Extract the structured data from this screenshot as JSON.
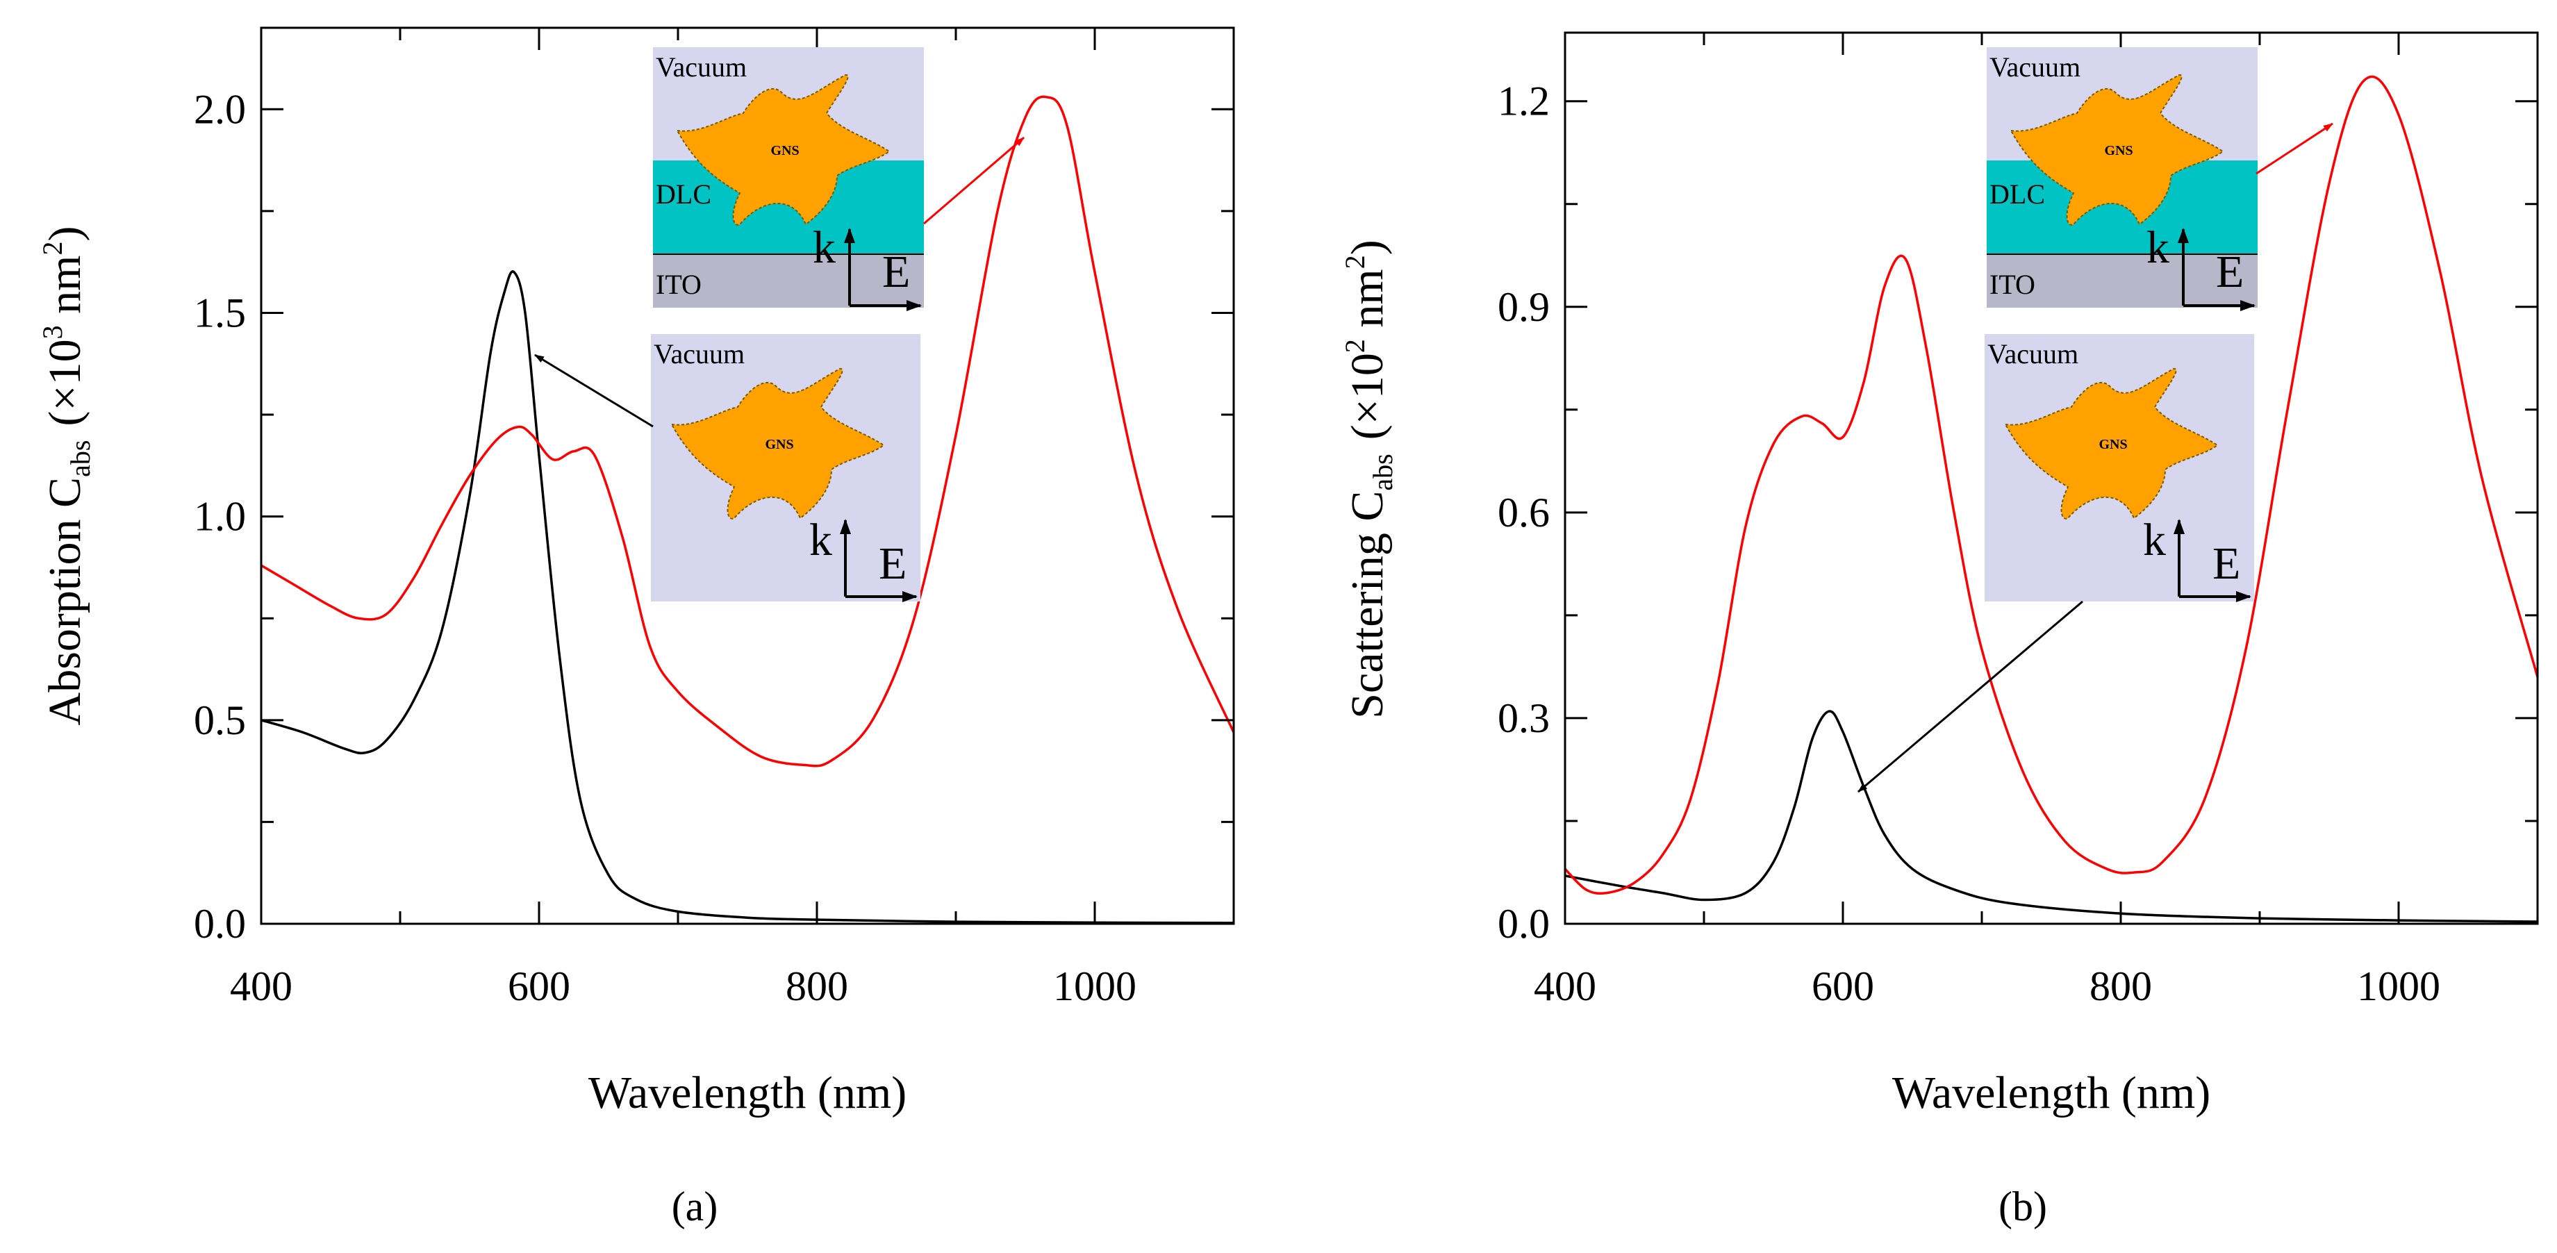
{
  "colors": {
    "black_series": "#000000",
    "red_series": "#ff0000",
    "inset_vacuum": "#d6d6ee",
    "inset_dlc": "#00c4c4",
    "inset_ito": "#b7b7c9",
    "nanostar": "#ffa200"
  },
  "chart_data": [
    {
      "type": "line",
      "panel_label": "(a)",
      "xlabel": "Wavelength (nm)",
      "ylabel_main": "Absorption C",
      "ylabel_sub": "abs",
      "ylabel_unit_pre": "(×10",
      "ylabel_unit_exp": "3",
      "ylabel_unit_mid": " nm",
      "ylabel_unit_exp2": "2",
      "ylabel_unit_post": ")",
      "xlim": [
        400,
        1100
      ],
      "ylim": [
        0,
        2.2
      ],
      "xticks": [
        400,
        600,
        800,
        1000
      ],
      "xtick_labels": [
        "400",
        "600",
        "800",
        "1000"
      ],
      "yticks": [
        0,
        0.5,
        1.0,
        1.5,
        2.0
      ],
      "ytick_labels": [
        "0.0",
        "0.5",
        "1.0",
        "1.5",
        "2.0"
      ],
      "series": [
        {
          "color": "#000000",
          "x": [
            400,
            430,
            460,
            475,
            490,
            510,
            530,
            550,
            565,
            575,
            582,
            590,
            600,
            615,
            630,
            650,
            670,
            700,
            750,
            800,
            900,
            1000,
            1100
          ],
          "y": [
            0.5,
            0.47,
            0.43,
            0.42,
            0.45,
            0.55,
            0.72,
            1.05,
            1.4,
            1.55,
            1.6,
            1.5,
            1.15,
            0.65,
            0.3,
            0.12,
            0.06,
            0.03,
            0.015,
            0.01,
            0.005,
            0.003,
            0.002
          ]
        },
        {
          "color": "#ff0000",
          "x": [
            400,
            420,
            450,
            470,
            490,
            510,
            530,
            550,
            570,
            585,
            595,
            610,
            625,
            640,
            660,
            680,
            700,
            730,
            760,
            790,
            810,
            840,
            870,
            900,
            930,
            950,
            965,
            980,
            1000,
            1030,
            1060,
            1100
          ],
          "y": [
            0.88,
            0.84,
            0.78,
            0.75,
            0.76,
            0.85,
            0.98,
            1.1,
            1.19,
            1.22,
            1.2,
            1.14,
            1.16,
            1.15,
            0.95,
            0.68,
            0.57,
            0.48,
            0.41,
            0.39,
            0.4,
            0.5,
            0.75,
            1.2,
            1.75,
            1.98,
            2.03,
            1.96,
            1.6,
            1.1,
            0.77,
            0.47
          ]
        }
      ],
      "insets": [
        {
          "layers": [
            "Vacuum",
            "DLC",
            "ITO"
          ],
          "particle_label": "GNS",
          "k_label": "k",
          "e_label": "E"
        },
        {
          "layers": [
            "Vacuum"
          ],
          "particle_label": "GNS",
          "k_label": "k",
          "e_label": "E"
        }
      ]
    },
    {
      "type": "line",
      "panel_label": "(b)",
      "xlabel": "Wavelength (nm)",
      "ylabel_main": "Scattering C",
      "ylabel_sub": "abs",
      "ylabel_unit_pre": "(×10",
      "ylabel_unit_exp": "2",
      "ylabel_unit_mid": " nm",
      "ylabel_unit_exp2": "2",
      "ylabel_unit_post": ")",
      "xlim": [
        400,
        1100
      ],
      "ylim": [
        0,
        1.3
      ],
      "xticks": [
        400,
        600,
        800,
        1000
      ],
      "xtick_labels": [
        "400",
        "600",
        "800",
        "1000"
      ],
      "yticks": [
        0,
        0.3,
        0.6,
        0.9,
        1.2
      ],
      "ytick_labels": [
        "0.0",
        "0.3",
        "0.6",
        "0.9",
        "1.2"
      ],
      "series": [
        {
          "color": "#000000",
          "x": [
            400,
            440,
            470,
            500,
            530,
            550,
            565,
            578,
            590,
            600,
            615,
            630,
            650,
            680,
            720,
            800,
            900,
            1000,
            1100
          ],
          "y": [
            0.07,
            0.055,
            0.045,
            0.035,
            0.045,
            0.09,
            0.17,
            0.27,
            0.31,
            0.28,
            0.2,
            0.13,
            0.08,
            0.05,
            0.03,
            0.015,
            0.008,
            0.005,
            0.003
          ]
        },
        {
          "color": "#ff0000",
          "x": [
            400,
            415,
            430,
            450,
            470,
            490,
            510,
            530,
            550,
            570,
            585,
            600,
            615,
            630,
            645,
            660,
            680,
            700,
            730,
            760,
            790,
            810,
            830,
            860,
            890,
            920,
            950,
            975,
            1000,
            1030,
            1060,
            1100
          ],
          "y": [
            0.08,
            0.05,
            0.045,
            0.06,
            0.1,
            0.18,
            0.35,
            0.58,
            0.7,
            0.74,
            0.73,
            0.71,
            0.79,
            0.93,
            0.97,
            0.84,
            0.6,
            0.4,
            0.22,
            0.12,
            0.08,
            0.075,
            0.09,
            0.18,
            0.4,
            0.75,
            1.08,
            1.23,
            1.18,
            0.95,
            0.65,
            0.36
          ]
        }
      ],
      "insets": [
        {
          "layers": [
            "Vacuum",
            "DLC",
            "ITO"
          ],
          "particle_label": "GNS",
          "k_label": "k",
          "e_label": "E"
        },
        {
          "layers": [
            "Vacuum"
          ],
          "particle_label": "GNS",
          "k_label": "k",
          "e_label": "E"
        }
      ]
    }
  ]
}
